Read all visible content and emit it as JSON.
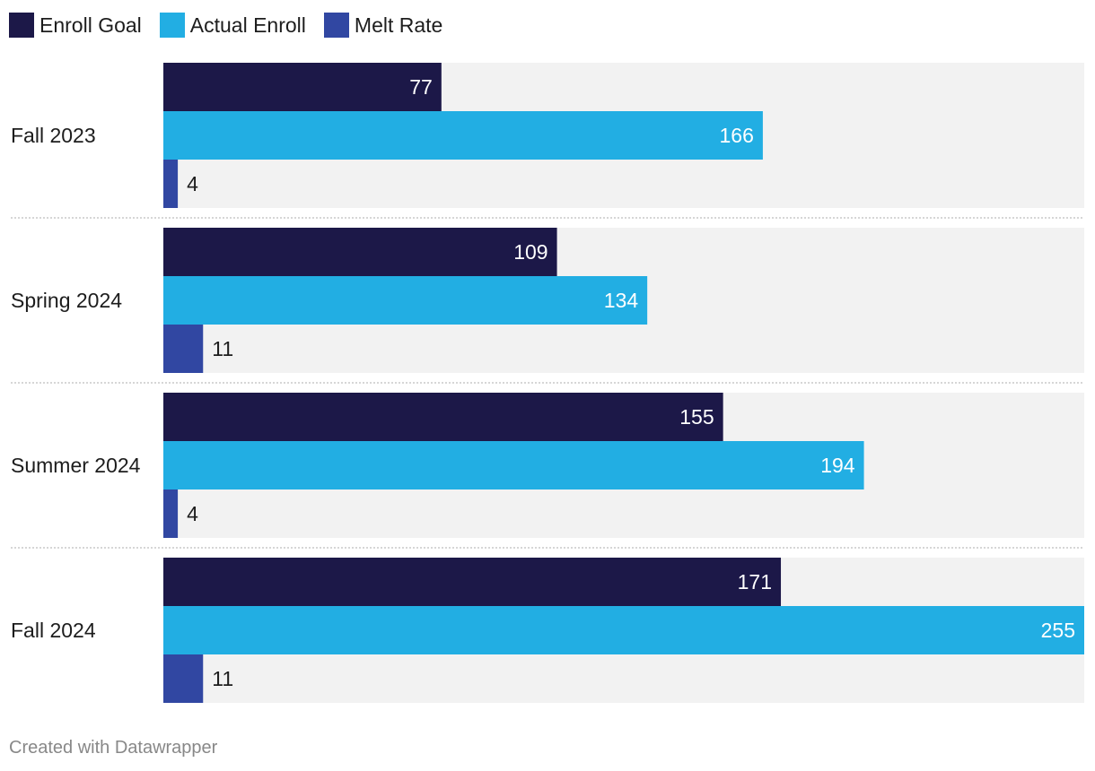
{
  "legend": [
    {
      "label": "Enroll Goal",
      "color": "#1c1848"
    },
    {
      "label": "Actual Enroll",
      "color": "#22aee3"
    },
    {
      "label": "Melt Rate",
      "color": "#3147a2"
    }
  ],
  "footer": "Created with Datawrapper",
  "chart_data": {
    "type": "bar",
    "orientation": "horizontal",
    "categories": [
      "Fall 2023",
      "Spring 2024",
      "Summer 2024",
      "Fall 2024"
    ],
    "series": [
      {
        "name": "Enroll Goal",
        "color": "#1c1848",
        "values": [
          77,
          109,
          155,
          171
        ]
      },
      {
        "name": "Actual Enroll",
        "color": "#22aee3",
        "values": [
          166,
          134,
          194,
          255
        ]
      },
      {
        "name": "Melt Rate",
        "color": "#3147a2",
        "values": [
          4,
          11,
          4,
          11
        ]
      }
    ],
    "xlim": [
      0,
      255
    ],
    "grid": false,
    "legend_position": "top-left",
    "background_track_color": "#f2f2f2"
  }
}
